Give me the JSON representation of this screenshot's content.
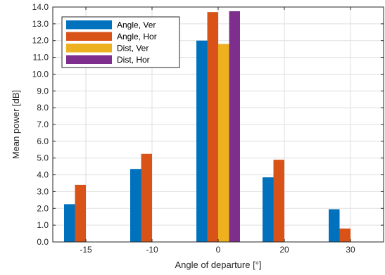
{
  "chart_data": {
    "type": "bar",
    "title": "",
    "xlabel": "Angle of departure [°]",
    "ylabel": "Mean power [dB]",
    "categories": [
      "-15",
      "-10",
      "0",
      "20",
      "30"
    ],
    "ylim": [
      0,
      14
    ],
    "yticks": [
      0,
      1,
      2,
      3,
      4,
      5,
      6,
      7,
      8,
      9,
      10,
      11,
      12,
      13,
      14
    ],
    "ytick_labels": [
      "0.0",
      "1.0",
      "2.0",
      "3.0",
      "4.0",
      "5.0",
      "6.0",
      "7.0",
      "8.0",
      "9.0",
      "10.0",
      "11.0",
      "12.0",
      "13.0",
      "14.0"
    ],
    "grid": true,
    "legend_position": "top-left",
    "series": [
      {
        "name": "Angle, Ver",
        "color": "#0072BD",
        "values": [
          2.25,
          4.35,
          12.0,
          3.85,
          1.95
        ]
      },
      {
        "name": "Angle, Hor",
        "color": "#D95319",
        "values": [
          3.4,
          5.25,
          13.7,
          4.9,
          0.8
        ]
      },
      {
        "name": "Dist, Ver",
        "color": "#EDB120",
        "values": [
          0,
          0,
          11.8,
          0,
          0
        ]
      },
      {
        "name": "Dist, Hor",
        "color": "#7E2F8E",
        "values": [
          0,
          0,
          13.75,
          0,
          0
        ]
      }
    ]
  }
}
